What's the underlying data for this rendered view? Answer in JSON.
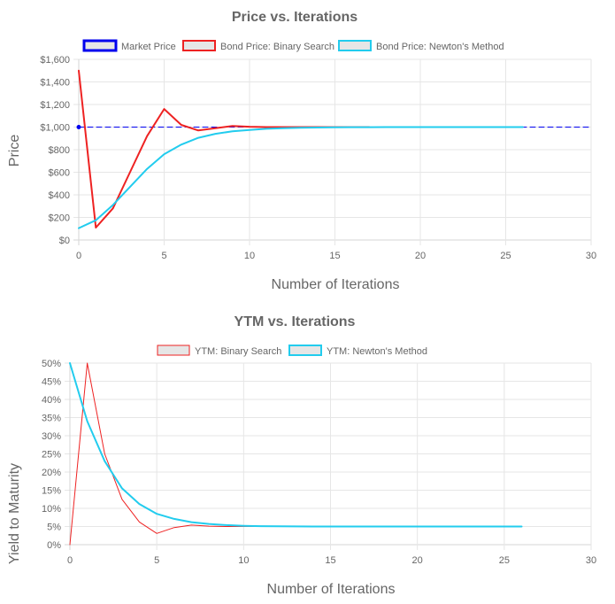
{
  "charts": [
    {
      "type": "line",
      "title": "Price vs. Iterations",
      "xlabel": "Number of Iterations",
      "ylabel": "Price",
      "xlim": [
        0,
        30
      ],
      "ylim": [
        0,
        1600
      ],
      "x_ticks": [
        "0",
        "5",
        "10",
        "15",
        "20",
        "25",
        "30"
      ],
      "y_ticks": [
        "$0",
        "$200",
        "$400",
        "$600",
        "$800",
        "$1,000",
        "$1,200",
        "$1,400",
        "$1,600"
      ],
      "legend": [
        "Market Price",
        "Bond Price: Binary Search",
        "Bond Price: Newton's Method"
      ],
      "series": [
        {
          "name": "Market Price",
          "color": "#0000ee",
          "dashed": true,
          "fill": "#e6e6e6",
          "line_width": 1,
          "x": [
            0,
            30
          ],
          "y": [
            1000,
            1000
          ]
        },
        {
          "name": "Bond Price: Binary Search",
          "color": "#ee2222",
          "fill": "#e6e6e6",
          "line_width": 2,
          "x": [
            0,
            1,
            2,
            3,
            4,
            5,
            6,
            7,
            8,
            9,
            10,
            11,
            12,
            13,
            14,
            15,
            16,
            17
          ],
          "y": [
            1500,
            110,
            280,
            600,
            920,
            1160,
            1020,
            970,
            990,
            1010,
            1003,
            1000,
            1000,
            1000,
            1000,
            1000,
            1000,
            1000
          ]
        },
        {
          "name": "Bond Price: Newton's Method",
          "color": "#22ccee",
          "fill": "#e6e6e6",
          "line_width": 2,
          "x": [
            0,
            1,
            2,
            3,
            4,
            5,
            6,
            7,
            8,
            9,
            10,
            11,
            12,
            13,
            14,
            15,
            16,
            17,
            18,
            19,
            20,
            21,
            22,
            23,
            24,
            25,
            26
          ],
          "y": [
            105,
            175,
            310,
            470,
            630,
            760,
            845,
            905,
            940,
            962,
            975,
            985,
            990,
            994,
            996,
            998,
            999,
            999.5,
            1000,
            1000,
            1000,
            1000,
            1000,
            1000,
            1000,
            1000,
            1000
          ]
        }
      ]
    },
    {
      "type": "line",
      "title": "YTM vs. Iterations",
      "xlabel": "Number of Iterations",
      "ylabel": "Yield to Maturity",
      "xlim": [
        0,
        30
      ],
      "ylim": [
        0,
        50
      ],
      "x_ticks": [
        "0",
        "5",
        "10",
        "15",
        "20",
        "25",
        "30"
      ],
      "y_ticks": [
        "0%",
        "5%",
        "10%",
        "15%",
        "20%",
        "25%",
        "30%",
        "35%",
        "40%",
        "45%",
        "50%"
      ],
      "legend": [
        "YTM: Binary Search",
        "YTM: Newton's Method"
      ],
      "series": [
        {
          "name": "YTM: Binary Search",
          "color": "#ee2222",
          "fill": "#e6e6e6",
          "line_width": 1,
          "x": [
            0,
            1,
            2,
            3,
            4,
            5,
            6,
            7,
            8,
            9,
            10,
            11,
            12,
            13,
            14,
            15,
            16,
            17
          ],
          "y": [
            0,
            50,
            25,
            12.5,
            6.25,
            3.1,
            4.7,
            5.4,
            5.1,
            5.0,
            5.0,
            5.0,
            5.0,
            5.0,
            5.0,
            5.0,
            5.0,
            5.0
          ]
        },
        {
          "name": "YTM: Newton's Method",
          "color": "#22ccee",
          "fill": "#e6e6e6",
          "line_width": 2,
          "x": [
            0,
            1,
            2,
            3,
            4,
            5,
            6,
            7,
            8,
            9,
            10,
            11,
            12,
            13,
            14,
            15,
            16,
            17,
            18,
            19,
            20,
            21,
            22,
            23,
            24,
            25,
            26
          ],
          "y": [
            50,
            34,
            23,
            15.5,
            11.2,
            8.5,
            7.1,
            6.2,
            5.7,
            5.4,
            5.2,
            5.1,
            5.05,
            5.02,
            5.0,
            5.0,
            5.0,
            5.0,
            5.0,
            5.0,
            5.0,
            5.0,
            5.0,
            5.0,
            5.0,
            5.0,
            5.0
          ]
        }
      ]
    }
  ]
}
